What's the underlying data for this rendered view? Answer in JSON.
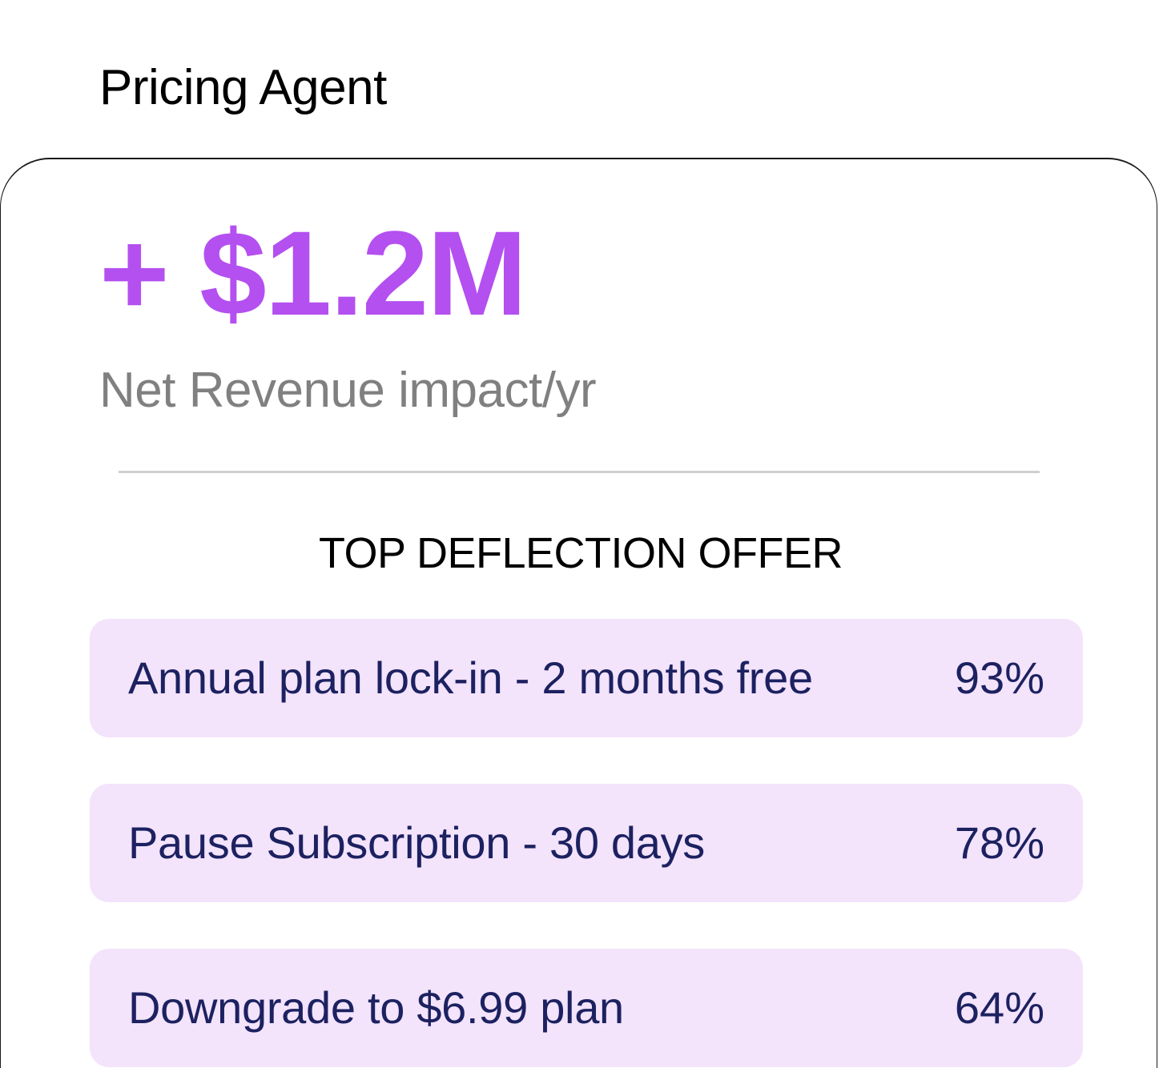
{
  "header": {
    "title": "Pricing Agent"
  },
  "metric": {
    "value": "+ $1.2M",
    "caption": "Net Revenue impact/yr"
  },
  "offers_section": {
    "heading": "TOP DEFLECTION OFFER",
    "items": [
      {
        "label": "Annual plan lock-in - 2 months free",
        "rate": "93%"
      },
      {
        "label": "Pause Subscription - 30 days",
        "rate": "78%"
      },
      {
        "label": "Downgrade to $6.99 plan",
        "rate": "64%"
      }
    ]
  },
  "colors": {
    "accent": "#b44ff0",
    "offer_background": "#f3e3fb",
    "offer_text": "#1c2160",
    "caption": "#808080"
  }
}
